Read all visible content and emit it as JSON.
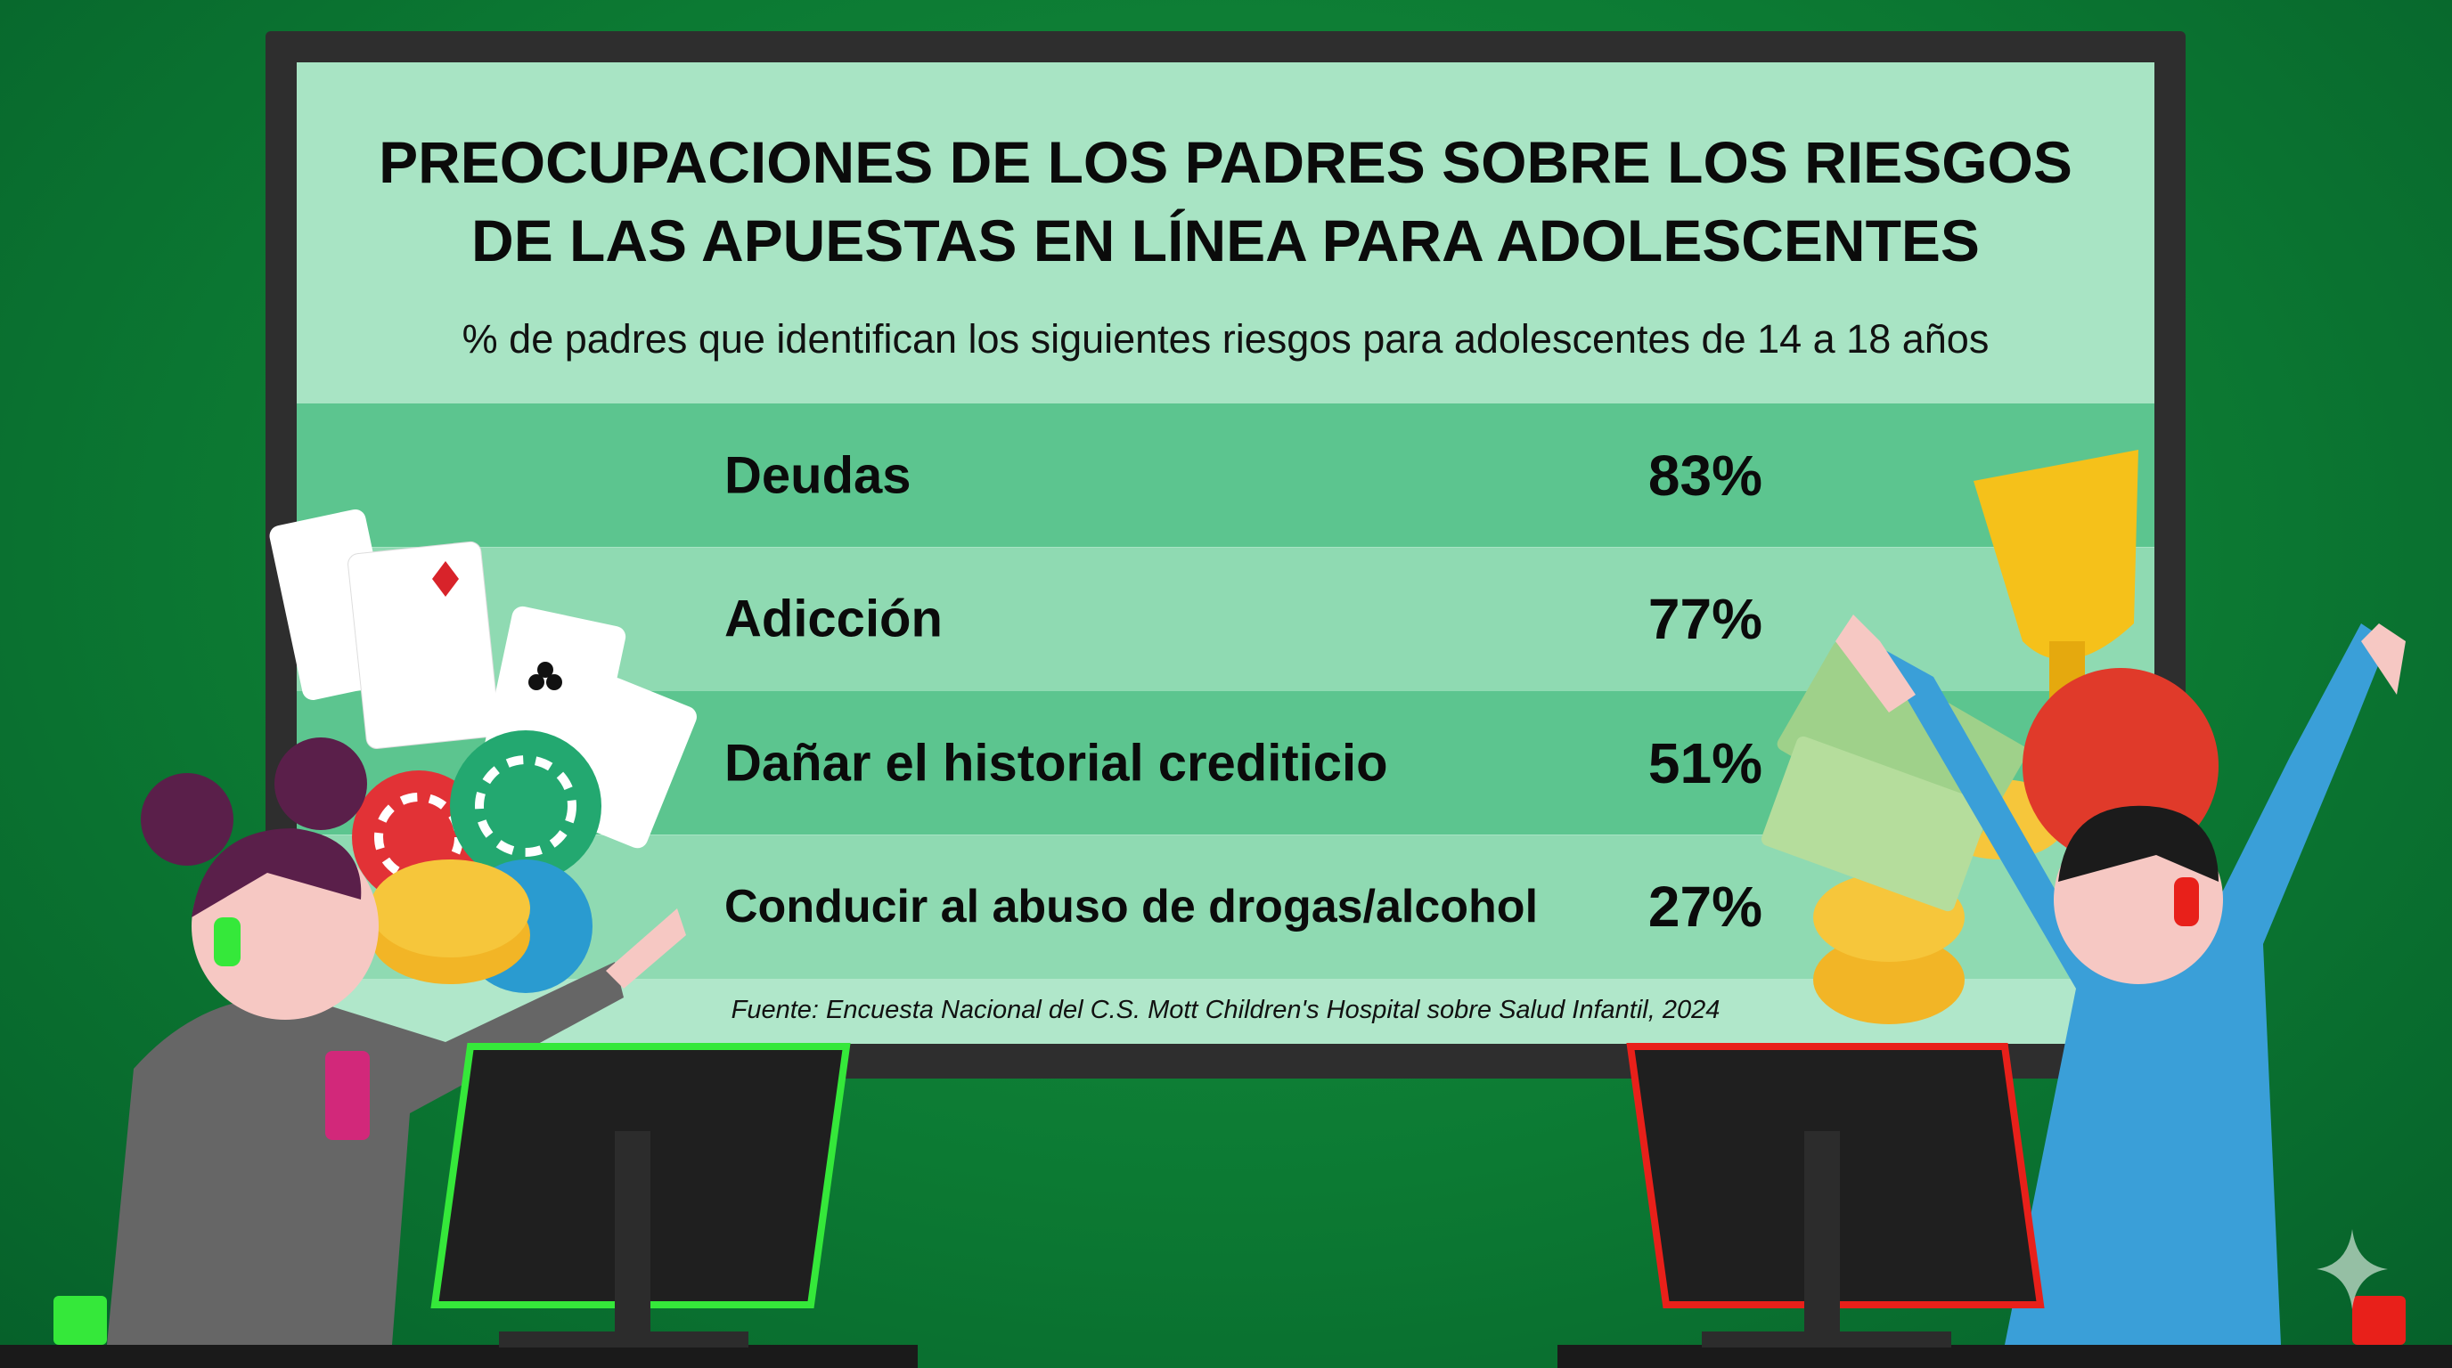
{
  "chart_data": {
    "type": "table",
    "title": "PREOCUPACIONES DE LOS PADRES SOBRE LOS RIESGOS DE LAS APUESTAS EN LÍNEA PARA ADOLESCENTES",
    "title_lines": [
      "PREOCUPACIONES DE LOS PADRES SOBRE LOS RIESGOS",
      "DE LAS APUESTAS EN LÍNEA PARA ADOLESCENTES"
    ],
    "subtitle": "% de padres que identifican los siguientes riesgos para adolescentes de 14 a 18 años",
    "categories": [
      "Deudas",
      "Adicción",
      "Dañar el historial crediticio",
      "Conducir al abuso de drogas/alcohol"
    ],
    "values": [
      83,
      77,
      51,
      27
    ],
    "value_labels": [
      "83%",
      "77%",
      "51%",
      "27%"
    ],
    "source": "Fuente: Encuesta Nacional del C.S. Mott Children's Hospital sobre Salud Infantil, 2024"
  },
  "colors": {
    "background": "#0c7a33",
    "header": "#a8e4c4",
    "row_dark": "#5cc58f",
    "row_light": "#8fdab2",
    "frame": "#2e2e2e",
    "left_monitor_accent": "#35e83a",
    "right_monitor_accent": "#e8201a"
  },
  "decorations": [
    "playing-cards-icon",
    "poker-chips-icon",
    "gold-coins-icon",
    "trophy-icon",
    "money-bills-icon",
    "basketball-icon",
    "girl-with-headset",
    "boy-with-headset-cheering",
    "sparkle-icon"
  ]
}
